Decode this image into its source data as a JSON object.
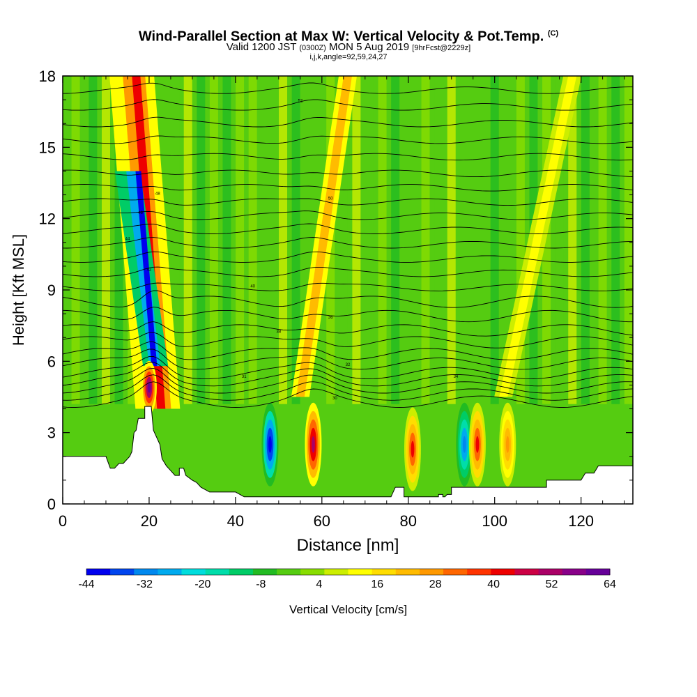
{
  "header": {
    "title": "Wind-Parallel Section at Max W: Vertical Velocity & Pot.Temp.",
    "title_suffix": "(C)",
    "valid_prefix": "Valid 1200 JST",
    "valid_utc": "(0300Z)",
    "valid_date": "MON 5 Aug 2019",
    "forecast": "[9hrFcst@2229z]",
    "params": "i,j,k,angle=92,59,24,27"
  },
  "chart_data": {
    "type": "heatmap",
    "xlabel": "Distance [nm]",
    "ylabel": "Height [Kft MSL]",
    "xlim": [
      0,
      132
    ],
    "ylim": [
      0,
      18
    ],
    "x_ticks": [
      0,
      20,
      40,
      60,
      80,
      100,
      120
    ],
    "y_ticks": [
      0,
      3,
      6,
      9,
      12,
      15,
      18
    ],
    "colorbar": {
      "label": "Vertical Velocity [cm/s]",
      "tick_labels": [
        -44,
        -32,
        -20,
        -8,
        4,
        16,
        28,
        40,
        52,
        64
      ],
      "colors": [
        "#0000ee",
        "#0044ee",
        "#0088ee",
        "#00aaee",
        "#00dddd",
        "#00ddaa",
        "#00cc66",
        "#22bb22",
        "#55cc11",
        "#88dd00",
        "#ccee00",
        "#ffff00",
        "#ffdd00",
        "#ffbb00",
        "#ff9900",
        "#ff6600",
        "#ff3300",
        "#ee0000",
        "#cc0044",
        "#aa0066",
        "#880088",
        "#660099"
      ]
    },
    "vertical_velocity_features": [
      {
        "x": 20,
        "height": 4.9,
        "value": 64,
        "kind": "updraft core"
      },
      {
        "x": 21,
        "height": 8.5,
        "value": -44,
        "kind": "downdraft tilted band"
      },
      {
        "x": 48,
        "height": 2.5,
        "value": -44,
        "kind": "downdraft"
      },
      {
        "x": 58,
        "height": 2.5,
        "value": 52,
        "kind": "updraft"
      },
      {
        "x": 81,
        "height": 2.3,
        "value": 40,
        "kind": "updraft"
      },
      {
        "x": 93,
        "height": 2.5,
        "value": -32,
        "kind": "downdraft"
      },
      {
        "x": 96,
        "height": 2.5,
        "value": 40,
        "kind": "updraft"
      },
      {
        "x": 103,
        "height": 2.5,
        "value": 28,
        "kind": "updraft"
      }
    ],
    "theta_contour_labels": [
      "30",
      "31",
      "32",
      "34",
      "36",
      "38",
      "40",
      "42",
      "44",
      "46",
      "48",
      "50",
      "52"
    ],
    "terrain": [
      [
        0,
        2
      ],
      [
        2,
        2
      ],
      [
        10,
        2
      ],
      [
        11,
        1.5
      ],
      [
        12,
        1.5
      ],
      [
        13,
        1.7
      ],
      [
        14,
        1.7
      ],
      [
        15,
        1.9
      ],
      [
        15.5,
        2
      ],
      [
        16,
        2.2
      ],
      [
        16.5,
        3
      ],
      [
        17,
        3.1
      ],
      [
        17.5,
        3.6
      ],
      [
        19,
        3.6
      ],
      [
        19,
        4.1
      ],
      [
        20.5,
        4.1
      ],
      [
        21,
        3.1
      ],
      [
        22.5,
        2.5
      ],
      [
        23,
        1.9
      ],
      [
        24,
        1.6
      ],
      [
        25,
        1.4
      ],
      [
        26,
        1.2
      ],
      [
        27,
        1.2
      ],
      [
        27,
        1.5
      ],
      [
        28,
        1.5
      ],
      [
        28.5,
        1.2
      ],
      [
        30,
        1
      ],
      [
        31,
        0.9
      ],
      [
        32,
        0.7
      ],
      [
        34,
        0.5
      ],
      [
        36,
        0.5
      ],
      [
        40,
        0.5
      ],
      [
        42,
        0.3
      ],
      [
        44,
        0.3
      ],
      [
        48,
        0.3
      ],
      [
        60,
        0.3
      ],
      [
        64,
        0.3
      ],
      [
        68,
        0.3
      ],
      [
        72,
        0.3
      ],
      [
        76,
        0.3
      ],
      [
        77,
        0.7
      ],
      [
        79,
        0.7
      ],
      [
        79,
        0.3
      ],
      [
        84,
        0.3
      ],
      [
        87,
        0.3
      ],
      [
        87,
        0.4
      ],
      [
        88,
        0.4
      ],
      [
        88,
        0.3
      ],
      [
        88.5,
        0.3
      ],
      [
        89,
        0.4
      ],
      [
        90,
        0.4
      ],
      [
        90,
        0.7
      ],
      [
        100,
        0.7
      ],
      [
        112,
        0.7
      ],
      [
        112,
        1
      ],
      [
        120,
        1
      ],
      [
        121,
        1.3
      ],
      [
        123,
        1.3
      ],
      [
        124,
        1.6
      ],
      [
        132,
        1.6
      ]
    ]
  }
}
